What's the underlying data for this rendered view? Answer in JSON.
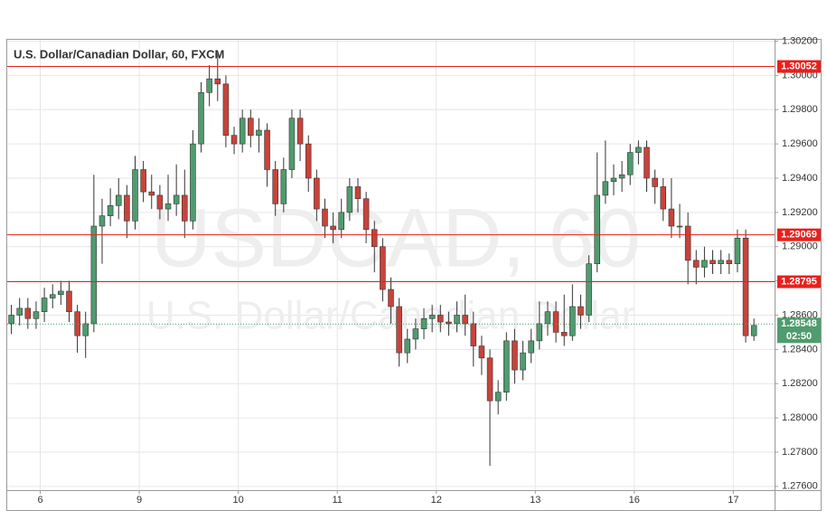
{
  "chart_data": {
    "type": "candlestick",
    "title": "U.S. Dollar/Canadian Dollar, 60, FXCM",
    "watermark": {
      "symbol": "USDCAD, 60",
      "description": "U.S. Dollar/Canadian Dollar"
    },
    "up_color": "#4f9c6e",
    "down_color": "#c8433a",
    "grid": true,
    "xlim": [
      0,
      186
    ],
    "xticks": [
      {
        "value": 8,
        "label": "6"
      },
      {
        "value": 32,
        "label": "9"
      },
      {
        "value": 56,
        "label": "10"
      },
      {
        "value": 80,
        "label": "11"
      },
      {
        "value": 104,
        "label": "12"
      },
      {
        "value": 128,
        "label": "13"
      },
      {
        "value": 152,
        "label": "16"
      },
      {
        "value": 176,
        "label": "17"
      }
    ],
    "ylim": [
      1.27578,
      1.30208
    ],
    "yticks": [
      {
        "value": 1.276,
        "label": "1.27600"
      },
      {
        "value": 1.278,
        "label": "1.27800"
      },
      {
        "value": 1.28,
        "label": "1.28000"
      },
      {
        "value": 1.282,
        "label": "1.28200"
      },
      {
        "value": 1.284,
        "label": "1.28400"
      },
      {
        "value": 1.286,
        "label": "1.28600"
      },
      {
        "value": 1.288,
        "label": "1.28800"
      },
      {
        "value": 1.29,
        "label": "1.29000"
      },
      {
        "value": 1.292,
        "label": "1.29200"
      },
      {
        "value": 1.294,
        "label": "1.29400"
      },
      {
        "value": 1.296,
        "label": "1.29600"
      },
      {
        "value": 1.298,
        "label": "1.29800"
      },
      {
        "value": 1.3,
        "label": "1.30000"
      },
      {
        "value": 1.302,
        "label": "1.30200"
      }
    ],
    "levels": [
      {
        "value": 1.30052,
        "color": "#e8201c"
      },
      {
        "value": 1.29069,
        "color": "#e8201c"
      },
      {
        "value": 1.28795,
        "color": "#e8201c"
      }
    ],
    "last": {
      "value": 1.28548,
      "countdown": "02:50",
      "color": "#4f9c6e"
    },
    "x": [
      1,
      3,
      5,
      7,
      9,
      11,
      13,
      15,
      17,
      19,
      21,
      23,
      25,
      27,
      29,
      31,
      33,
      35,
      37,
      39,
      41,
      43,
      45,
      47,
      49,
      51,
      53,
      55,
      57,
      59,
      61,
      63,
      65,
      67,
      69,
      71,
      73,
      75,
      77,
      79,
      81,
      83,
      85,
      87,
      89,
      91,
      93,
      95,
      97,
      99,
      101,
      103,
      105,
      107,
      109,
      111,
      113,
      115,
      117,
      119,
      121,
      123,
      125,
      127,
      129,
      131,
      133,
      135,
      137,
      139,
      141,
      143,
      145,
      147,
      149,
      151,
      153,
      155,
      157,
      159,
      161,
      163,
      165,
      167,
      169,
      171,
      173,
      175,
      177,
      179,
      181
    ],
    "open": [
      1.2855,
      1.286,
      1.2864,
      1.2858,
      1.2862,
      1.287,
      1.2872,
      1.2874,
      1.2862,
      1.2848,
      1.2855,
      1.2912,
      1.2918,
      1.2924,
      1.293,
      1.2915,
      1.2945,
      1.2932,
      1.293,
      1.2922,
      1.2925,
      1.293,
      1.2915,
      1.296,
      1.299,
      1.2998,
      1.2995,
      1.2965,
      1.296,
      1.2975,
      1.2965,
      1.2968,
      1.2945,
      1.2925,
      1.2945,
      1.2975,
      1.296,
      1.294,
      1.2922,
      1.2912,
      1.291,
      1.292,
      1.2935,
      1.2928,
      1.291,
      1.29,
      1.2875,
      1.2865,
      1.2838,
      1.2846,
      1.2852,
      1.2858,
      1.286,
      1.2856,
      1.2855,
      1.286,
      1.2855,
      1.2842,
      1.2835,
      1.281,
      1.2815,
      1.2845,
      1.2828,
      1.2838,
      1.2845,
      1.2855,
      1.2862,
      1.285,
      1.2848,
      1.2865,
      1.286,
      1.289,
      1.293,
      1.2938,
      1.294,
      1.2942,
      1.2955,
      1.2958,
      1.294,
      1.2935,
      1.2922,
      1.2912,
      1.2912,
      1.2892,
      1.2888,
      1.2892,
      1.289,
      1.2892,
      1.289,
      1.2905,
      1.2848
    ],
    "high": [
      1.2866,
      1.287,
      1.287,
      1.2868,
      1.2876,
      1.2878,
      1.288,
      1.288,
      1.2866,
      1.2862,
      1.2942,
      1.2928,
      1.2934,
      1.294,
      1.2936,
      1.2953,
      1.295,
      1.2942,
      1.2936,
      1.2942,
      1.2948,
      1.2945,
      1.2968,
      1.2996,
      1.3006,
      1.3013,
      1.3,
      1.297,
      1.298,
      1.298,
      1.2975,
      1.2972,
      1.295,
      1.2952,
      1.298,
      1.298,
      1.2965,
      1.2945,
      1.2928,
      1.292,
      1.2928,
      1.294,
      1.294,
      1.2932,
      1.2915,
      1.2905,
      1.2882,
      1.287,
      1.2852,
      1.2858,
      1.2864,
      1.2866,
      1.2866,
      1.2862,
      1.2868,
      1.2872,
      1.2862,
      1.2848,
      1.284,
      1.2822,
      1.285,
      1.2852,
      1.2845,
      1.2852,
      1.2868,
      1.2868,
      1.2868,
      1.2872,
      1.2878,
      1.2872,
      1.2895,
      1.2955,
      1.2962,
      1.2948,
      1.295,
      1.296,
      1.2962,
      1.2962,
      1.2945,
      1.294,
      1.294,
      1.2925,
      1.292,
      1.2898,
      1.29,
      1.2898,
      1.2898,
      1.2896,
      1.291,
      1.291,
      1.2858
    ],
    "low": [
      1.2849,
      1.2854,
      1.2852,
      1.2852,
      1.2856,
      1.2864,
      1.2866,
      1.2856,
      1.2838,
      1.2835,
      1.285,
      1.289,
      1.2912,
      1.2916,
      1.2905,
      1.291,
      1.2926,
      1.2922,
      1.2916,
      1.2915,
      1.2918,
      1.2905,
      1.291,
      1.2955,
      1.2982,
      1.2985,
      1.2958,
      1.2954,
      1.2955,
      1.2958,
      1.2955,
      1.2935,
      1.2918,
      1.292,
      1.294,
      1.295,
      1.2932,
      1.2915,
      1.2905,
      1.2902,
      1.2905,
      1.2915,
      1.292,
      1.2902,
      1.2885,
      1.2868,
      1.2855,
      1.283,
      1.2832,
      1.284,
      1.2846,
      1.285,
      1.285,
      1.2848,
      1.285,
      1.2848,
      1.283,
      1.2825,
      1.2772,
      1.2802,
      1.281,
      1.282,
      1.2822,
      1.2832,
      1.284,
      1.2848,
      1.2844,
      1.2842,
      1.2845,
      1.2852,
      1.2856,
      1.2885,
      1.2925,
      1.293,
      1.2932,
      1.2936,
      1.2948,
      1.2932,
      1.2925,
      1.2915,
      1.2905,
      1.2905,
      1.2878,
      1.2878,
      1.2882,
      1.2884,
      1.2884,
      1.2884,
      1.2885,
      1.2844,
      1.2845
    ],
    "close": [
      1.286,
      1.2864,
      1.2858,
      1.2862,
      1.287,
      1.2872,
      1.2874,
      1.2862,
      1.2848,
      1.2855,
      1.2912,
      1.2918,
      1.2924,
      1.293,
      1.2915,
      1.2945,
      1.2932,
      1.293,
      1.2922,
      1.2925,
      1.293,
      1.2915,
      1.296,
      1.299,
      1.2998,
      1.2995,
      1.2965,
      1.296,
      1.2975,
      1.2965,
      1.2968,
      1.2945,
      1.2925,
      1.2945,
      1.2975,
      1.296,
      1.294,
      1.2922,
      1.2912,
      1.291,
      1.292,
      1.2935,
      1.2928,
      1.291,
      1.29,
      1.2875,
      1.2865,
      1.2838,
      1.2846,
      1.2852,
      1.2858,
      1.286,
      1.2856,
      1.2855,
      1.286,
      1.2855,
      1.2842,
      1.2835,
      1.281,
      1.2815,
      1.2845,
      1.2828,
      1.2838,
      1.2845,
      1.2855,
      1.2862,
      1.285,
      1.2848,
      1.2865,
      1.286,
      1.289,
      1.293,
      1.2938,
      1.294,
      1.2942,
      1.2955,
      1.2958,
      1.294,
      1.2935,
      1.2922,
      1.2912,
      1.2912,
      1.2892,
      1.2888,
      1.2892,
      1.289,
      1.2892,
      1.289,
      1.2905,
      1.2848,
      1.2854
    ]
  }
}
